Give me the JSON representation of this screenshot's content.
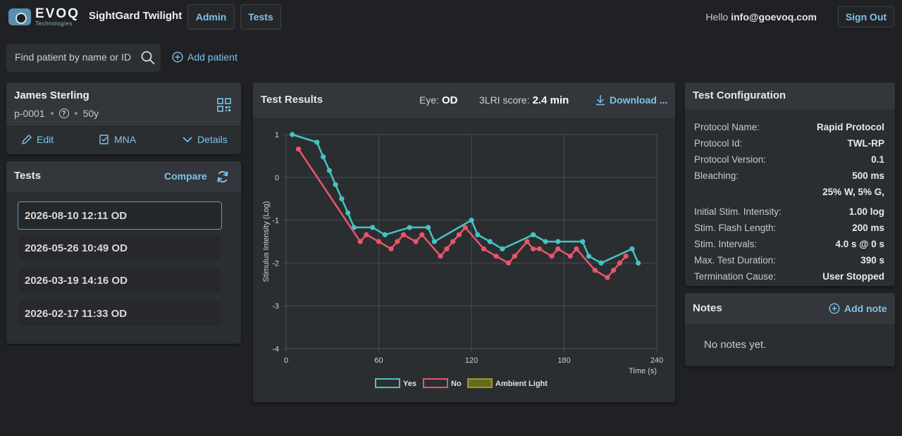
{
  "header": {
    "logo_main": "EVOQ",
    "logo_sub": "Technologies",
    "app_title": "SightGard Twilight",
    "nav": [
      "Admin",
      "Tests"
    ],
    "hello_prefix": "Hello",
    "user_email": "info@goevoq.com",
    "sign_out": "Sign Out"
  },
  "search": {
    "placeholder": "Find patient by name or ID",
    "add_patient": "Add patient"
  },
  "patient": {
    "name": "James Sterling",
    "id": "p-0001",
    "age": "50y",
    "help_glyph": "?",
    "actions": {
      "edit": "Edit",
      "mna": "MNA",
      "details": "Details"
    }
  },
  "tests": {
    "title": "Tests",
    "compare": "Compare",
    "items": [
      "2026-08-10 12:11 OD",
      "2026-05-26 10:49 OD",
      "2026-03-19 14:16 OD",
      "2026-02-17 11:33 OD"
    ]
  },
  "results": {
    "title": "Test Results",
    "eye_label": "Eye:",
    "eye_value": "OD",
    "score_label": "3LRI score:",
    "score_value": "2.4 min",
    "download": "Download ..."
  },
  "chart_data": {
    "type": "line",
    "xlabel": "Time (s)",
    "ylabel": "Stimulus Intensity (Log)",
    "xlim": [
      0,
      240
    ],
    "ylim": [
      -4,
      1
    ],
    "xticks": [
      0,
      60,
      120,
      180,
      240
    ],
    "yticks": [
      1,
      0,
      -1,
      -2,
      -3,
      -4
    ],
    "grid": true,
    "legend_position": "bottom",
    "series": [
      {
        "name": "Yes",
        "color": "#45c4c4",
        "x": [
          4,
          20,
          24,
          28,
          32,
          36,
          40,
          44,
          56,
          64,
          80,
          92,
          96,
          120,
          124,
          132,
          140,
          160,
          168,
          176,
          192,
          196,
          204,
          224,
          228
        ],
        "y": [
          1.0,
          0.82,
          0.48,
          0.16,
          -0.17,
          -0.5,
          -0.83,
          -1.17,
          -1.17,
          -1.34,
          -1.17,
          -1.17,
          -1.5,
          -1.0,
          -1.34,
          -1.5,
          -1.67,
          -1.34,
          -1.5,
          -1.5,
          -1.5,
          -1.84,
          -2.0,
          -1.67,
          -2.0
        ]
      },
      {
        "name": "No",
        "color": "#e8566d",
        "x": [
          8,
          48,
          52,
          60,
          68,
          72,
          76,
          84,
          88,
          100,
          104,
          108,
          112,
          116,
          128,
          136,
          144,
          148,
          156,
          160,
          164,
          172,
          176,
          184,
          188,
          200,
          208,
          212,
          216,
          220
        ],
        "y": [
          0.66,
          -1.5,
          -1.34,
          -1.5,
          -1.67,
          -1.5,
          -1.34,
          -1.5,
          -1.34,
          -1.84,
          -1.67,
          -1.5,
          -1.34,
          -1.17,
          -1.67,
          -1.84,
          -2.0,
          -1.84,
          -1.5,
          -1.67,
          -1.67,
          -1.84,
          -1.67,
          -1.84,
          -1.67,
          -2.17,
          -2.34,
          -2.17,
          -2.0,
          -1.84
        ]
      },
      {
        "name": "Ambient Light",
        "color": "#9c9a26",
        "x": [],
        "y": []
      }
    ]
  },
  "config": {
    "title": "Test Configuration",
    "rows": [
      {
        "label": "Protocol Name:",
        "value": "Rapid Protocol"
      },
      {
        "label": "Protocol Id:",
        "value": "TWL-RP"
      },
      {
        "label": "Protocol Version:",
        "value": "0.1"
      },
      {
        "label": "Bleaching:",
        "value": "500 ms",
        "value2": "25% W, 5% G,"
      },
      {
        "label": "Initial Stim. Intensity:",
        "value": "1.00 log"
      },
      {
        "label": "Stim. Flash Length:",
        "value": "200 ms"
      },
      {
        "label": "Stim. Intervals:",
        "value": "4.0 s @ 0 s"
      },
      {
        "label": "Max. Test Duration:",
        "value": "390 s"
      },
      {
        "label": "Termination Cause:",
        "value": "User Stopped"
      }
    ]
  },
  "notes": {
    "title": "Notes",
    "add_note": "Add note",
    "empty": "No notes yet."
  }
}
